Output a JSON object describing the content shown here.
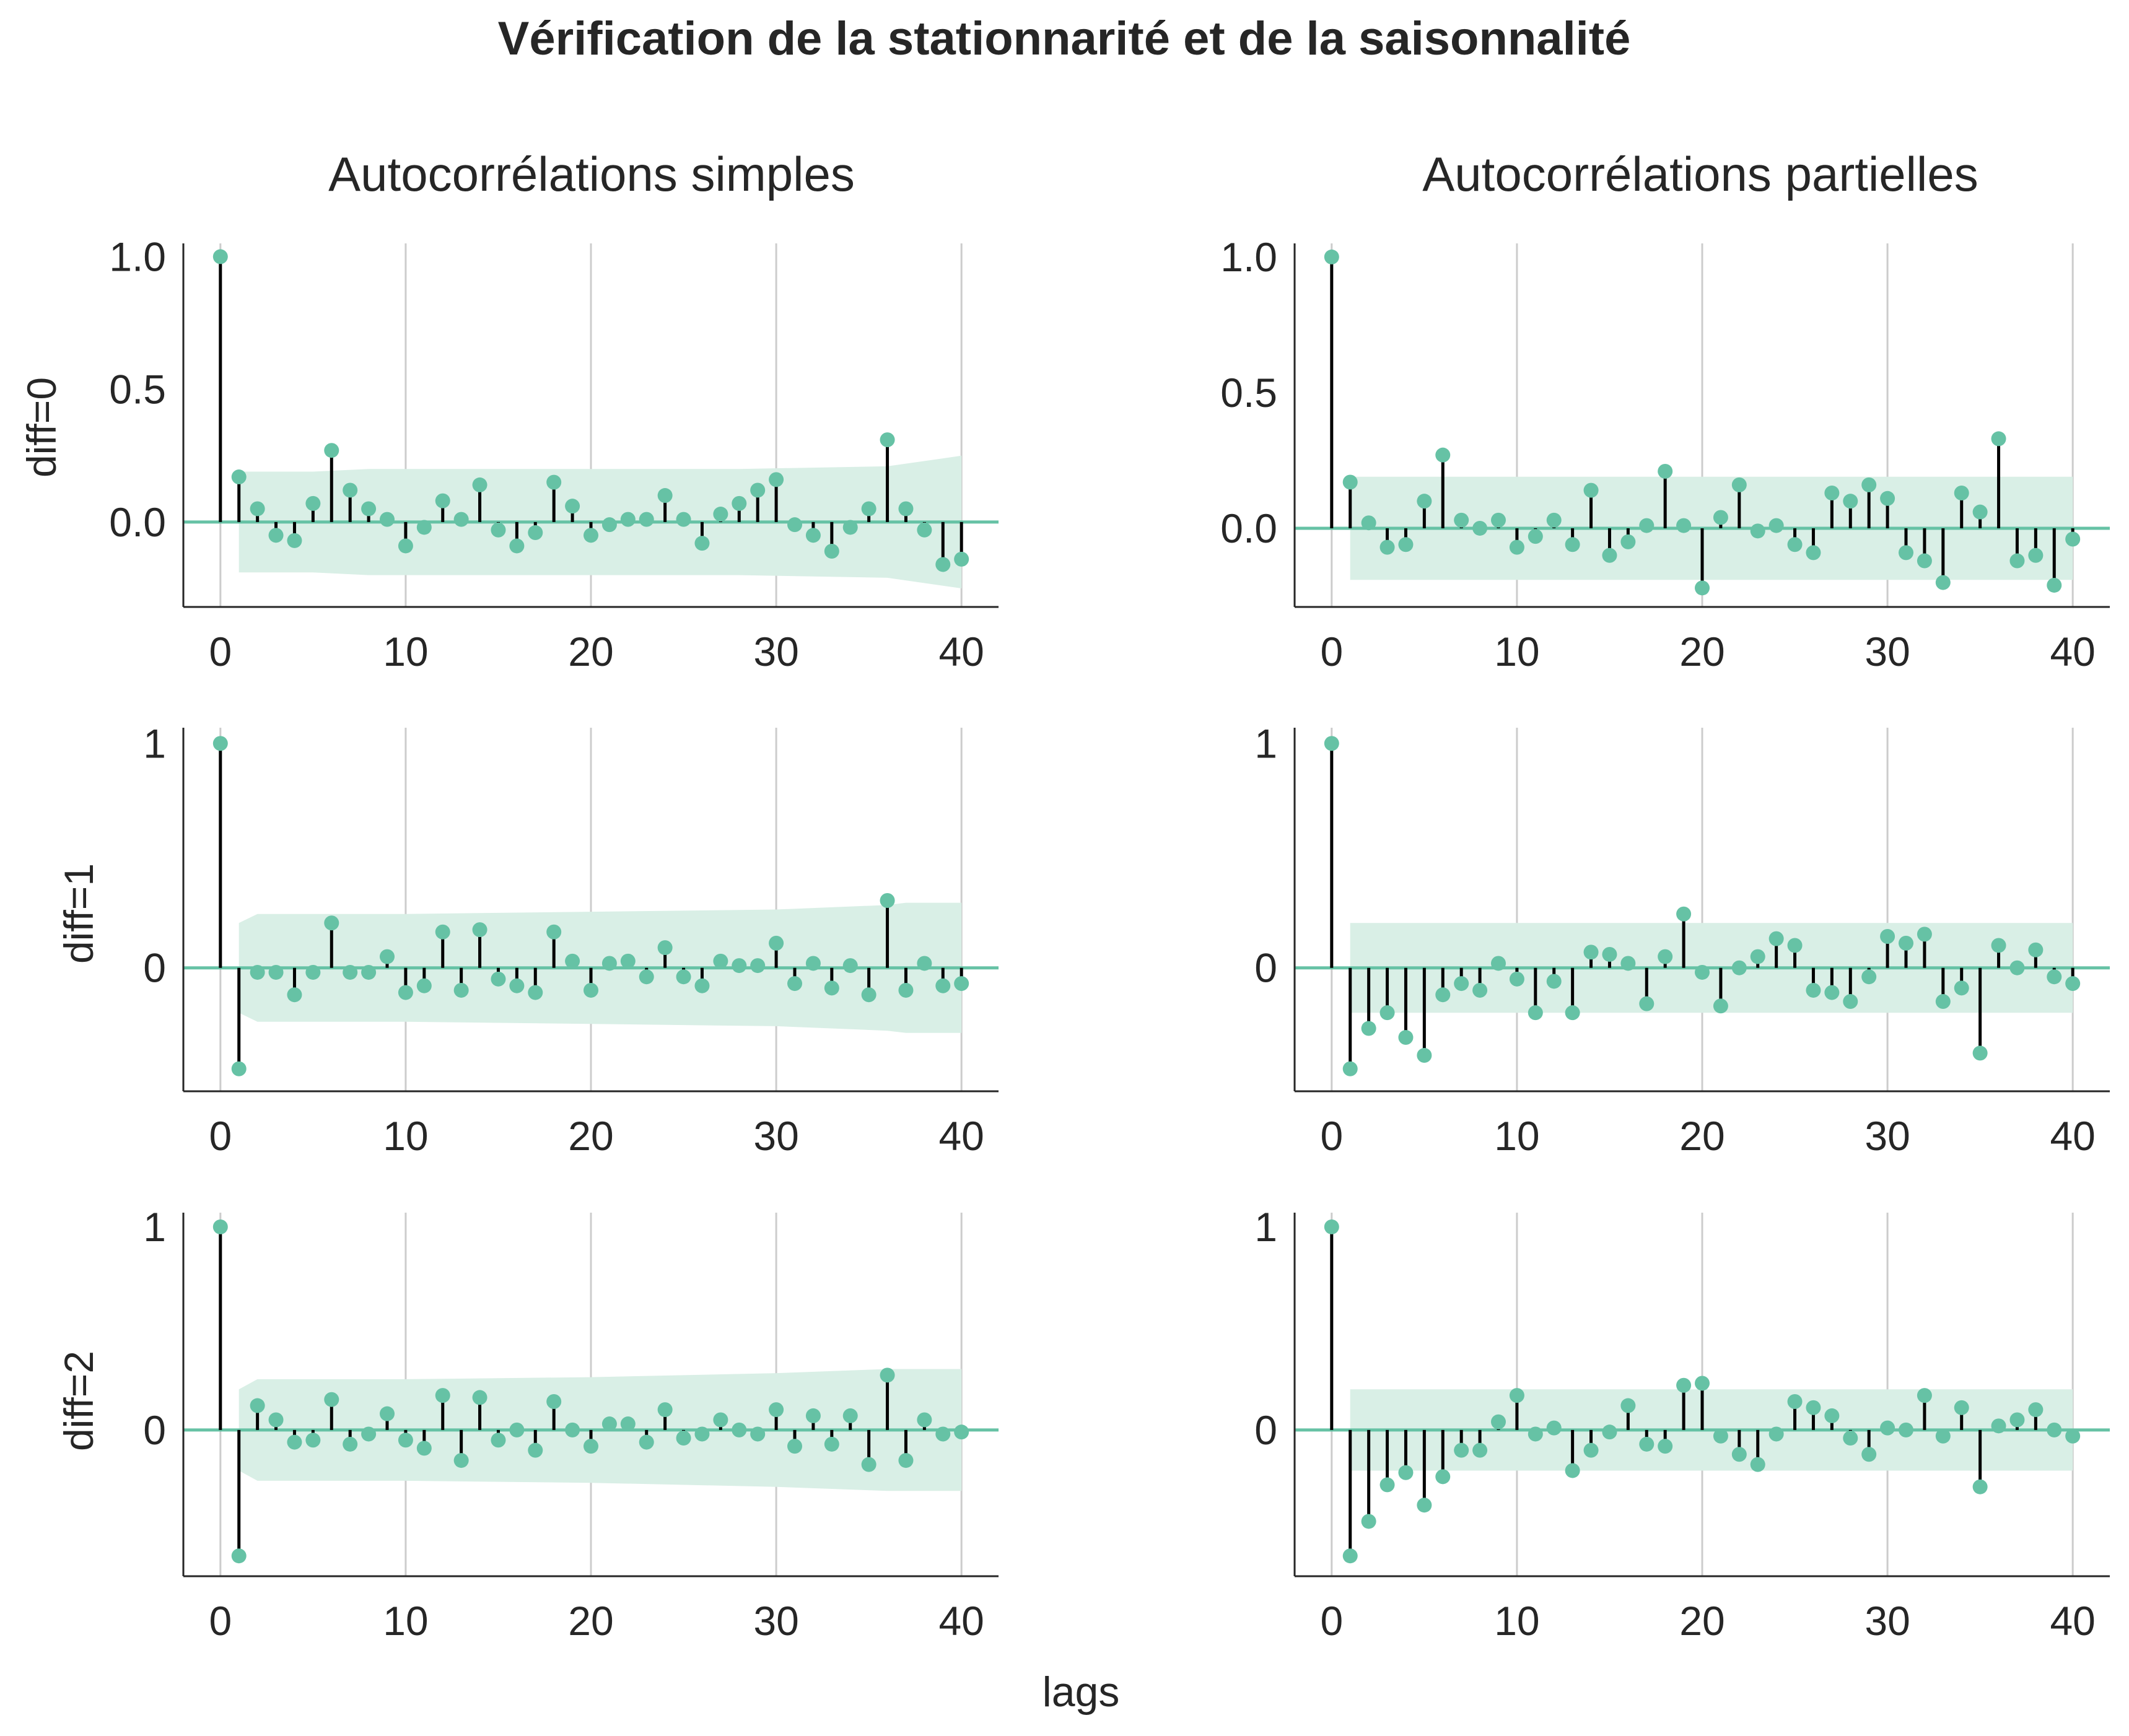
{
  "figure": {
    "title": "Vérification de la stationnarité et de la saisonnalité",
    "column_titles": [
      "Autocorrélations simples",
      "Autocorrélations partielles"
    ],
    "row_labels": [
      "diff=0",
      "diff=1",
      "diff=2"
    ],
    "xlabel": "lags"
  },
  "colors": {
    "marker": "#66c2a5",
    "stem": "#000000",
    "band": "#d9efe6",
    "zero_line": "#66c2a5",
    "grid": "#cccccc",
    "axis": "#262626"
  },
  "chart_data": [
    {
      "type": "stem",
      "title": "Autocorrélations simples",
      "ylabel": "diff=0",
      "xlabel": "",
      "xlim": [
        -2,
        42
      ],
      "ylim": [
        -0.32,
        1.05
      ],
      "xticks": [
        0,
        10,
        20,
        30,
        40
      ],
      "yticks": [
        0.0,
        0.5,
        1.0
      ],
      "ytick_labels": [
        "0.0",
        "0.5",
        "1.0"
      ],
      "grid": "vertical",
      "lags": [
        0,
        1,
        2,
        3,
        4,
        5,
        6,
        7,
        8,
        9,
        10,
        11,
        12,
        13,
        14,
        15,
        16,
        17,
        18,
        19,
        20,
        21,
        22,
        23,
        24,
        25,
        26,
        27,
        28,
        29,
        30,
        31,
        32,
        33,
        34,
        35,
        36,
        37,
        38,
        39,
        40
      ],
      "values": [
        1.0,
        0.17,
        0.05,
        -0.05,
        -0.07,
        0.07,
        0.27,
        0.12,
        0.05,
        0.01,
        -0.09,
        -0.02,
        0.08,
        0.01,
        0.14,
        -0.03,
        -0.09,
        -0.04,
        0.15,
        0.06,
        -0.05,
        -0.01,
        0.01,
        0.01,
        0.1,
        0.01,
        -0.08,
        0.03,
        0.07,
        0.12,
        0.16,
        -0.01,
        -0.05,
        -0.11,
        -0.02,
        0.05,
        0.31,
        0.05,
        -0.03,
        -0.16,
        -0.14
      ],
      "conf_band": {
        "lags": [
          1,
          5,
          8,
          12,
          20,
          28,
          36,
          39,
          40
        ],
        "upper": [
          0.19,
          0.19,
          0.2,
          0.2,
          0.2,
          0.2,
          0.21,
          0.24,
          0.25
        ],
        "lower": [
          -0.19,
          -0.19,
          -0.2,
          -0.2,
          -0.2,
          -0.2,
          -0.21,
          -0.24,
          -0.25
        ]
      }
    },
    {
      "type": "stem",
      "title": "Autocorrélations partielles",
      "ylabel": "",
      "xlabel": "",
      "xlim": [
        -2,
        42
      ],
      "ylim": [
        -0.29,
        1.05
      ],
      "xticks": [
        0,
        10,
        20,
        30,
        40
      ],
      "yticks": [
        0.0,
        0.5,
        1.0
      ],
      "ytick_labels": [
        "0.0",
        "0.5",
        "1.0"
      ],
      "grid": "vertical",
      "lags": [
        0,
        1,
        2,
        3,
        4,
        5,
        6,
        7,
        8,
        9,
        10,
        11,
        12,
        13,
        14,
        15,
        16,
        17,
        18,
        19,
        20,
        21,
        22,
        23,
        24,
        25,
        26,
        27,
        28,
        29,
        30,
        31,
        32,
        33,
        34,
        35,
        36,
        37,
        38,
        39,
        40
      ],
      "values": [
        1.0,
        0.17,
        0.02,
        -0.07,
        -0.06,
        0.1,
        0.27,
        0.03,
        0.0,
        0.03,
        -0.07,
        -0.03,
        0.03,
        -0.06,
        0.14,
        -0.1,
        -0.05,
        0.01,
        0.21,
        0.01,
        -0.22,
        0.04,
        0.16,
        -0.01,
        0.01,
        -0.06,
        -0.09,
        0.13,
        0.1,
        0.16,
        0.11,
        -0.09,
        -0.12,
        -0.2,
        0.13,
        0.06,
        0.33,
        -0.12,
        -0.1,
        -0.21,
        -0.04
      ],
      "conf_band": {
        "lags": [
          1,
          40
        ],
        "upper": [
          0.19,
          0.19
        ],
        "lower": [
          -0.19,
          -0.19
        ]
      }
    },
    {
      "type": "stem",
      "title": "",
      "ylabel": "diff=1",
      "xlabel": "",
      "xlim": [
        -2,
        42
      ],
      "ylim": [
        -0.55,
        1.07
      ],
      "xticks": [
        0,
        10,
        20,
        30,
        40
      ],
      "yticks": [
        0,
        1
      ],
      "ytick_labels": [
        "0",
        "1"
      ],
      "grid": "vertical",
      "lags": [
        0,
        1,
        2,
        3,
        4,
        5,
        6,
        7,
        8,
        9,
        10,
        11,
        12,
        13,
        14,
        15,
        16,
        17,
        18,
        19,
        20,
        21,
        22,
        23,
        24,
        25,
        26,
        27,
        28,
        29,
        30,
        31,
        32,
        33,
        34,
        35,
        36,
        37,
        38,
        39,
        40
      ],
      "values": [
        1.0,
        -0.45,
        -0.02,
        -0.02,
        -0.12,
        -0.02,
        0.2,
        -0.02,
        -0.02,
        0.05,
        -0.11,
        -0.08,
        0.16,
        -0.1,
        0.17,
        -0.05,
        -0.08,
        -0.11,
        0.16,
        0.03,
        -0.1,
        0.02,
        0.03,
        -0.04,
        0.09,
        -0.04,
        -0.08,
        0.03,
        0.01,
        0.01,
        0.11,
        -0.07,
        0.02,
        -0.09,
        0.01,
        -0.12,
        0.3,
        -0.1,
        0.02,
        -0.08,
        -0.07
      ],
      "conf_band": {
        "lags": [
          1,
          2,
          10,
          20,
          30,
          36,
          37,
          40
        ],
        "upper": [
          0.2,
          0.24,
          0.24,
          0.25,
          0.26,
          0.28,
          0.29,
          0.29
        ],
        "lower": [
          -0.2,
          -0.24,
          -0.24,
          -0.25,
          -0.26,
          -0.28,
          -0.29,
          -0.29
        ]
      }
    },
    {
      "type": "stem",
      "title": "",
      "ylabel": "",
      "xlabel": "",
      "xlim": [
        -2,
        42
      ],
      "ylim": [
        -0.55,
        1.07
      ],
      "xticks": [
        0,
        10,
        20,
        30,
        40
      ],
      "yticks": [
        0,
        1
      ],
      "ytick_labels": [
        "0",
        "1"
      ],
      "grid": "vertical",
      "lags": [
        0,
        1,
        2,
        3,
        4,
        5,
        6,
        7,
        8,
        9,
        10,
        11,
        12,
        13,
        14,
        15,
        16,
        17,
        18,
        19,
        20,
        21,
        22,
        23,
        24,
        25,
        26,
        27,
        28,
        29,
        30,
        31,
        32,
        33,
        34,
        35,
        36,
        37,
        38,
        39,
        40
      ],
      "values": [
        1.0,
        -0.45,
        -0.27,
        -0.2,
        -0.31,
        -0.39,
        -0.12,
        -0.07,
        -0.1,
        0.02,
        -0.05,
        -0.2,
        -0.06,
        -0.2,
        0.07,
        0.06,
        0.02,
        -0.16,
        0.05,
        0.24,
        -0.02,
        -0.17,
        0.0,
        0.05,
        0.13,
        0.1,
        -0.1,
        -0.11,
        -0.15,
        -0.04,
        0.14,
        0.11,
        0.15,
        -0.15,
        -0.09,
        -0.38,
        0.1,
        0.0,
        0.08,
        -0.04,
        -0.07
      ],
      "conf_band": {
        "lags": [
          1,
          40
        ],
        "upper": [
          0.2,
          0.2
        ],
        "lower": [
          -0.2,
          -0.2
        ]
      }
    },
    {
      "type": "stem",
      "title": "",
      "ylabel": "diff=2",
      "xlabel": "",
      "xlim": [
        -2,
        42
      ],
      "ylim": [
        -0.72,
        1.07
      ],
      "xticks": [
        0,
        10,
        20,
        30,
        40
      ],
      "yticks": [
        0,
        1
      ],
      "ytick_labels": [
        "0",
        "1"
      ],
      "grid": "vertical",
      "lags": [
        0,
        1,
        2,
        3,
        4,
        5,
        6,
        7,
        8,
        9,
        10,
        11,
        12,
        13,
        14,
        15,
        16,
        17,
        18,
        19,
        20,
        21,
        22,
        23,
        24,
        25,
        26,
        27,
        28,
        29,
        30,
        31,
        32,
        33,
        34,
        35,
        36,
        37,
        38,
        39,
        40
      ],
      "values": [
        1.0,
        -0.62,
        0.12,
        0.05,
        -0.06,
        -0.05,
        0.15,
        -0.07,
        -0.02,
        0.08,
        -0.05,
        -0.09,
        0.17,
        -0.15,
        0.16,
        -0.05,
        0.0,
        -0.1,
        0.14,
        0.0,
        -0.08,
        0.03,
        0.03,
        -0.06,
        0.1,
        -0.04,
        -0.02,
        0.05,
        0.0,
        -0.02,
        0.1,
        -0.08,
        0.07,
        -0.07,
        0.07,
        -0.17,
        0.27,
        -0.15,
        0.05,
        -0.02,
        -0.01
      ],
      "conf_band": {
        "lags": [
          1,
          2,
          10,
          20,
          30,
          36,
          37,
          40
        ],
        "upper": [
          0.2,
          0.25,
          0.25,
          0.26,
          0.28,
          0.3,
          0.3,
          0.3
        ],
        "lower": [
          -0.2,
          -0.25,
          -0.25,
          -0.26,
          -0.28,
          -0.3,
          -0.3,
          -0.3
        ]
      }
    },
    {
      "type": "stem",
      "title": "",
      "ylabel": "",
      "xlabel": "lags",
      "xlim": [
        -2,
        42
      ],
      "ylim": [
        -0.72,
        1.07
      ],
      "xticks": [
        0,
        10,
        20,
        30,
        40
      ],
      "yticks": [
        0,
        1
      ],
      "ytick_labels": [
        "0",
        "1"
      ],
      "grid": "vertical",
      "lags": [
        0,
        1,
        2,
        3,
        4,
        5,
        6,
        7,
        8,
        9,
        10,
        11,
        12,
        13,
        14,
        15,
        16,
        17,
        18,
        19,
        20,
        21,
        22,
        23,
        24,
        25,
        26,
        27,
        28,
        29,
        30,
        31,
        32,
        33,
        34,
        35,
        36,
        37,
        38,
        39,
        40
      ],
      "values": [
        1.0,
        -0.62,
        -0.45,
        -0.27,
        -0.21,
        -0.37,
        -0.23,
        -0.1,
        -0.1,
        0.04,
        0.17,
        -0.02,
        0.01,
        -0.2,
        -0.1,
        -0.01,
        0.12,
        -0.07,
        -0.08,
        0.22,
        0.23,
        -0.03,
        -0.12,
        -0.17,
        -0.02,
        0.14,
        0.11,
        0.07,
        -0.04,
        -0.12,
        0.01,
        0.0,
        0.17,
        -0.03,
        0.11,
        -0.28,
        0.02,
        0.05,
        0.1,
        0.0,
        -0.03
      ],
      "conf_band": {
        "lags": [
          1,
          40
        ],
        "upper": [
          0.2,
          0.2
        ],
        "lower": [
          -0.2,
          -0.2
        ]
      }
    }
  ]
}
